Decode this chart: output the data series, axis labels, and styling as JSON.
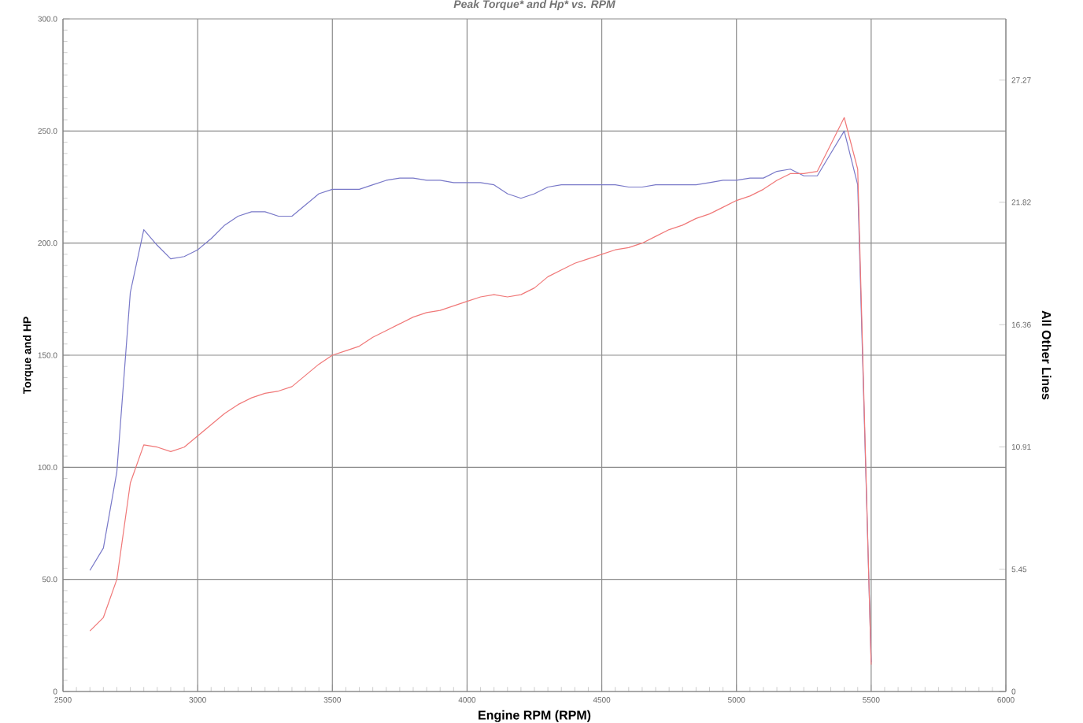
{
  "chart_data": {
    "type": "line",
    "title": "Peak Torque* and Hp* vs. RPM",
    "xlabel": "Engine RPM (RPM)",
    "ylabel": "Torque and HP",
    "y2label": "All Other Lines",
    "x": [
      2600,
      2650,
      2700,
      2750,
      2800,
      2850,
      2900,
      2950,
      3000,
      3050,
      3100,
      3150,
      3200,
      3250,
      3300,
      3350,
      3400,
      3450,
      3500,
      3550,
      3600,
      3650,
      3700,
      3750,
      3800,
      3850,
      3900,
      3950,
      4000,
      4050,
      4100,
      4150,
      4200,
      4250,
      4300,
      4350,
      4400,
      4450,
      4500,
      4550,
      4600,
      4650,
      4700,
      4750,
      4800,
      4850,
      4900,
      4950,
      5000,
      5050,
      5100,
      5150,
      5200,
      5250,
      5300,
      5350,
      5400,
      5450,
      5500
    ],
    "series": [
      {
        "color": "#7878c8",
        "values": [
          54,
          64,
          98,
          178,
          206,
          199,
          193,
          194,
          197,
          202,
          208,
          212,
          214,
          214,
          212,
          212,
          217,
          222,
          224,
          224,
          224,
          226,
          228,
          229,
          229,
          228,
          228,
          227,
          227,
          227,
          226,
          222,
          220,
          222,
          225,
          226,
          226,
          226,
          226,
          226,
          225,
          225,
          226,
          226,
          226,
          226,
          227,
          228,
          228,
          229,
          229,
          232,
          233,
          230,
          230,
          240,
          250,
          226,
          13
        ]
      },
      {
        "color": "#f07878",
        "values": [
          27,
          33,
          50,
          93,
          110,
          109,
          107,
          109,
          114,
          119,
          124,
          128,
          131,
          133,
          134,
          136,
          141,
          146,
          150,
          152,
          154,
          158,
          161,
          164,
          167,
          169,
          170,
          172,
          174,
          176,
          177,
          176,
          177,
          180,
          185,
          188,
          191,
          193,
          195,
          197,
          198,
          200,
          203,
          206,
          208,
          211,
          213,
          216,
          219,
          221,
          224,
          228,
          231,
          231,
          232,
          244,
          256,
          233,
          12
        ]
      }
    ],
    "xlim": [
      2500,
      6000
    ],
    "xticks": [
      2500,
      3000,
      3500,
      4000,
      4500,
      5000,
      5500,
      6000
    ],
    "ylim": [
      0,
      300
    ],
    "yticks": [
      0,
      {
        "value": 50,
        "label": "50.0"
      },
      {
        "value": 100,
        "label": "100.0"
      },
      {
        "value": 150,
        "label": "150.0"
      },
      {
        "value": 200,
        "label": "200.0"
      },
      {
        "value": 250,
        "label": "250.0"
      },
      {
        "value": 300,
        "label": "300.0"
      }
    ],
    "y2lim": [
      0,
      30
    ],
    "y2ticks": [
      0,
      5.45,
      10.91,
      16.36,
      21.82,
      27.27
    ],
    "grid": true,
    "line_style": "solid",
    "marker": "none"
  }
}
